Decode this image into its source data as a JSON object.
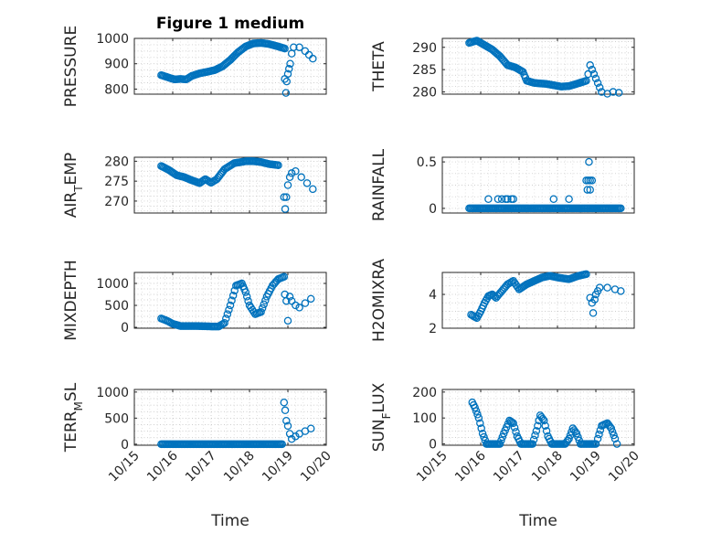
{
  "figure_title": "Figure 1 medium",
  "chart_data": [
    {
      "id": "pressure",
      "type": "scatter",
      "title": "Figure 1 medium",
      "ylabel": "PRESSURE",
      "ylabel_parts": [
        {
          "t": "PRESSURE",
          "s": "n"
        }
      ],
      "xlabel": "",
      "xlim": [
        0,
        5
      ],
      "ylim": [
        780,
        1000
      ],
      "yticks": [
        800,
        900,
        1000
      ],
      "ytick_labels": [
        "800",
        "900",
        "1000"
      ],
      "xticks": [
        0,
        1,
        2,
        3,
        4,
        5
      ],
      "show_xtick_labels": false,
      "grid": true,
      "keypoints": [
        [
          0.7,
          855
        ],
        [
          0.9,
          845
        ],
        [
          1.05,
          838
        ],
        [
          1.2,
          840
        ],
        [
          1.35,
          838
        ],
        [
          1.5,
          852
        ],
        [
          1.7,
          862
        ],
        [
          1.9,
          868
        ],
        [
          2.1,
          875
        ],
        [
          2.3,
          890
        ],
        [
          2.5,
          915
        ],
        [
          2.7,
          945
        ],
        [
          2.9,
          968
        ],
        [
          3.1,
          980
        ],
        [
          3.3,
          982
        ],
        [
          3.5,
          978
        ],
        [
          3.75,
          968
        ],
        [
          3.92,
          960
        ]
      ],
      "extra_points": [
        [
          3.92,
          840
        ],
        [
          3.95,
          785
        ],
        [
          3.97,
          830
        ],
        [
          4.0,
          860
        ],
        [
          4.03,
          880
        ],
        [
          4.06,
          900
        ],
        [
          4.1,
          940
        ],
        [
          4.15,
          965
        ],
        [
          4.3,
          965
        ],
        [
          4.45,
          950
        ],
        [
          4.55,
          935
        ],
        [
          4.65,
          920
        ]
      ]
    },
    {
      "id": "theta",
      "type": "scatter",
      "ylabel": "THETA",
      "ylabel_parts": [
        {
          "t": "THETA",
          "s": "n"
        }
      ],
      "xlabel": "",
      "xlim": [
        0,
        5
      ],
      "ylim": [
        279.5,
        292
      ],
      "yticks": [
        280,
        285,
        290
      ],
      "ytick_labels": [
        "280",
        "285",
        "290"
      ],
      "xticks": [
        0,
        1,
        2,
        3,
        4,
        5
      ],
      "show_xtick_labels": false,
      "grid": true,
      "keypoints": [
        [
          0.7,
          291
        ],
        [
          0.9,
          291.5
        ],
        [
          1.1,
          290.5
        ],
        [
          1.3,
          289.5
        ],
        [
          1.5,
          288
        ],
        [
          1.7,
          286
        ],
        [
          1.9,
          285.5
        ],
        [
          2.1,
          284.5
        ],
        [
          2.2,
          282.5
        ],
        [
          2.4,
          282
        ],
        [
          2.7,
          281.8
        ],
        [
          2.9,
          281.5
        ],
        [
          3.1,
          281.2
        ],
        [
          3.3,
          281.3
        ],
        [
          3.5,
          281.8
        ],
        [
          3.75,
          282.5
        ]
      ],
      "extra_points": [
        [
          3.8,
          284
        ],
        [
          3.85,
          286
        ],
        [
          3.9,
          285
        ],
        [
          3.95,
          284
        ],
        [
          4.0,
          283
        ],
        [
          4.05,
          282
        ],
        [
          4.1,
          281
        ],
        [
          4.15,
          280
        ],
        [
          4.3,
          279.6
        ],
        [
          4.45,
          280
        ],
        [
          4.6,
          279.8
        ]
      ]
    },
    {
      "id": "air_temp",
      "type": "scatter",
      "ylabel": "AIR_TEMP",
      "ylabel_parts": [
        {
          "t": "AIR",
          "s": "n"
        },
        {
          "t": "T",
          "s": "sub"
        },
        {
          "t": "EMP",
          "s": "n"
        }
      ],
      "xlabel": "",
      "xlim": [
        0,
        5
      ],
      "ylim": [
        267,
        281
      ],
      "yticks": [
        270,
        275,
        280
      ],
      "ytick_labels": [
        "270",
        "275",
        "280"
      ],
      "xticks": [
        0,
        1,
        2,
        3,
        4,
        5
      ],
      "show_xtick_labels": false,
      "grid": true,
      "keypoints": [
        [
          0.7,
          278.8
        ],
        [
          0.9,
          277.8
        ],
        [
          1.1,
          276.5
        ],
        [
          1.3,
          276
        ],
        [
          1.5,
          275.2
        ],
        [
          1.7,
          274.5
        ],
        [
          1.85,
          275.5
        ],
        [
          2.0,
          274.6
        ],
        [
          2.15,
          275.5
        ],
        [
          2.35,
          278
        ],
        [
          2.6,
          279.5
        ],
        [
          2.9,
          280
        ],
        [
          3.1,
          280
        ],
        [
          3.3,
          279.8
        ],
        [
          3.5,
          279.3
        ],
        [
          3.75,
          279
        ]
      ],
      "extra_points": [
        [
          3.9,
          271
        ],
        [
          3.93,
          268
        ],
        [
          3.96,
          271
        ],
        [
          4.0,
          274
        ],
        [
          4.05,
          276
        ],
        [
          4.1,
          277
        ],
        [
          4.2,
          277.5
        ],
        [
          4.35,
          276
        ],
        [
          4.5,
          274.5
        ],
        [
          4.65,
          273
        ]
      ]
    },
    {
      "id": "rainfall",
      "type": "scatter",
      "ylabel": "RAINFALL",
      "ylabel_parts": [
        {
          "t": "RAINFALL",
          "s": "n"
        }
      ],
      "xlabel": "",
      "xlim": [
        0,
        5
      ],
      "ylim": [
        -0.05,
        0.55
      ],
      "yticks": [
        0,
        0.5
      ],
      "ytick_labels": [
        "0",
        "0.5"
      ],
      "xticks": [
        0,
        1,
        2,
        3,
        4,
        5
      ],
      "show_xtick_labels": false,
      "grid": true,
      "keypoints": [
        [
          0.7,
          0
        ],
        [
          1.35,
          0
        ],
        [
          1.55,
          0
        ],
        [
          2.25,
          0
        ],
        [
          2.3,
          0
        ],
        [
          3.2,
          0
        ],
        [
          3.3,
          0
        ],
        [
          3.7,
          0
        ],
        [
          3.85,
          0
        ],
        [
          4.65,
          0
        ]
      ],
      "extra_points": [
        [
          1.2,
          0.1
        ],
        [
          1.45,
          0.1
        ],
        [
          1.55,
          0.1
        ],
        [
          1.65,
          0.1
        ],
        [
          1.7,
          0.1
        ],
        [
          1.8,
          0.1
        ],
        [
          1.85,
          0.1
        ],
        [
          2.9,
          0.1
        ],
        [
          3.3,
          0.1
        ],
        [
          3.75,
          0.3
        ],
        [
          3.8,
          0.3
        ],
        [
          3.85,
          0.3
        ],
        [
          3.9,
          0.3
        ],
        [
          3.82,
          0.5
        ],
        [
          3.78,
          0.2
        ],
        [
          3.85,
          0.2
        ]
      ]
    },
    {
      "id": "mixdepth",
      "type": "scatter",
      "ylabel": "MIXDEPTH",
      "ylabel_parts": [
        {
          "t": "MIXDEPTH",
          "s": "n"
        }
      ],
      "xlabel": "",
      "xlim": [
        0,
        5
      ],
      "ylim": [
        -20,
        1250
      ],
      "yticks": [
        0,
        500,
        1000
      ],
      "ytick_labels": [
        "0",
        "500",
        "1000"
      ],
      "xticks": [
        0,
        1,
        2,
        3,
        4,
        5
      ],
      "show_xtick_labels": false,
      "grid": true,
      "keypoints": [
        [
          0.7,
          200
        ],
        [
          0.85,
          150
        ],
        [
          1.0,
          80
        ],
        [
          1.2,
          30
        ],
        [
          1.6,
          30
        ],
        [
          2.0,
          20
        ],
        [
          2.2,
          20
        ],
        [
          2.35,
          100
        ],
        [
          2.5,
          500
        ],
        [
          2.65,
          950
        ],
        [
          2.8,
          1000
        ],
        [
          2.9,
          800
        ],
        [
          3.0,
          500
        ],
        [
          3.15,
          300
        ],
        [
          3.3,
          350
        ],
        [
          3.45,
          700
        ],
        [
          3.6,
          950
        ],
        [
          3.75,
          1100
        ],
        [
          3.9,
          1150
        ]
      ],
      "extra_points": [
        [
          3.92,
          750
        ],
        [
          3.96,
          600
        ],
        [
          4.0,
          150
        ],
        [
          4.05,
          700
        ],
        [
          4.1,
          600
        ],
        [
          4.2,
          500
        ],
        [
          4.3,
          450
        ],
        [
          4.45,
          550
        ],
        [
          4.6,
          650
        ]
      ]
    },
    {
      "id": "h2omixra",
      "type": "scatter",
      "ylabel": "H2OMIXRA",
      "ylabel_parts": [
        {
          "t": "H2OMIXRA",
          "s": "n"
        }
      ],
      "xlabel": "",
      "xlim": [
        0,
        5
      ],
      "ylim": [
        2,
        5.3
      ],
      "yticks": [
        2,
        4
      ],
      "ytick_labels": [
        "2",
        "4"
      ],
      "xticks": [
        0,
        1,
        2,
        3,
        4,
        5
      ],
      "show_xtick_labels": false,
      "grid": true,
      "keypoints": [
        [
          0.75,
          2.8
        ],
        [
          0.9,
          2.6
        ],
        [
          1.0,
          3.0
        ],
        [
          1.1,
          3.5
        ],
        [
          1.2,
          3.9
        ],
        [
          1.3,
          4.0
        ],
        [
          1.4,
          3.8
        ],
        [
          1.55,
          4.2
        ],
        [
          1.7,
          4.6
        ],
        [
          1.85,
          4.8
        ],
        [
          2.0,
          4.3
        ],
        [
          2.2,
          4.6
        ],
        [
          2.4,
          4.8
        ],
        [
          2.6,
          5.0
        ],
        [
          2.8,
          5.1
        ],
        [
          3.0,
          5.0
        ],
        [
          3.3,
          4.9
        ],
        [
          3.55,
          5.1
        ],
        [
          3.75,
          5.2
        ]
      ],
      "extra_points": [
        [
          3.85,
          3.8
        ],
        [
          3.9,
          3.5
        ],
        [
          3.93,
          2.9
        ],
        [
          3.97,
          3.7
        ],
        [
          4.0,
          4.0
        ],
        [
          4.05,
          4.2
        ],
        [
          4.1,
          4.4
        ],
        [
          4.3,
          4.4
        ],
        [
          4.5,
          4.3
        ],
        [
          4.65,
          4.2
        ]
      ]
    },
    {
      "id": "terr_msl",
      "type": "scatter",
      "ylabel": "TERR_MSL",
      "ylabel_parts": [
        {
          "t": "TERR",
          "s": "n"
        },
        {
          "t": "M",
          "s": "sub"
        },
        {
          "t": "SL",
          "s": "n"
        }
      ],
      "xlabel": "Time",
      "xlim": [
        0,
        5
      ],
      "ylim": [
        -20,
        1050
      ],
      "yticks": [
        0,
        500,
        1000
      ],
      "ytick_labels": [
        "0",
        "500",
        "1000"
      ],
      "xticks": [
        0,
        1,
        2,
        3,
        4,
        5
      ],
      "xtick_labels": [
        "10/15",
        "10/16",
        "10/17",
        "10/18",
        "10/19",
        "10/20"
      ],
      "show_xtick_labels": true,
      "grid": true,
      "keypoints": [
        [
          0.7,
          0
        ],
        [
          1.5,
          0
        ],
        [
          2.5,
          0
        ],
        [
          3.3,
          0
        ],
        [
          3.85,
          0
        ]
      ],
      "extra_points": [
        [
          3.9,
          800
        ],
        [
          3.93,
          650
        ],
        [
          3.96,
          450
        ],
        [
          4.0,
          350
        ],
        [
          4.05,
          200
        ],
        [
          4.1,
          100
        ],
        [
          4.2,
          150
        ],
        [
          4.3,
          200
        ],
        [
          4.45,
          250
        ],
        [
          4.6,
          300
        ]
      ]
    },
    {
      "id": "sun_flux",
      "type": "scatter",
      "ylabel": "SUN_FLUX",
      "ylabel_parts": [
        {
          "t": "SUN",
          "s": "n"
        },
        {
          "t": "F",
          "s": "sub"
        },
        {
          "t": "LUX",
          "s": "n"
        }
      ],
      "xlabel": "Time",
      "xlim": [
        0,
        5
      ],
      "ylim": [
        -5,
        210
      ],
      "yticks": [
        0,
        100,
        200
      ],
      "ytick_labels": [
        "0",
        "100",
        "200"
      ],
      "xticks": [
        0,
        1,
        2,
        3,
        4,
        5
      ],
      "xtick_labels": [
        "10/15",
        "10/16",
        "10/17",
        "10/18",
        "10/19",
        "10/20"
      ],
      "show_xtick_labels": true,
      "grid": true,
      "keypoints": [
        [
          0.78,
          160
        ],
        [
          0.85,
          140
        ],
        [
          0.95,
          100
        ],
        [
          1.05,
          40
        ],
        [
          1.15,
          0
        ],
        [
          1.5,
          0
        ],
        [
          1.6,
          40
        ],
        [
          1.75,
          90
        ],
        [
          1.85,
          80
        ],
        [
          1.95,
          30
        ],
        [
          2.05,
          0
        ],
        [
          2.35,
          0
        ],
        [
          2.45,
          50
        ],
        [
          2.55,
          110
        ],
        [
          2.65,
          90
        ],
        [
          2.75,
          30
        ],
        [
          2.85,
          0
        ],
        [
          3.2,
          0
        ],
        [
          3.3,
          20
        ],
        [
          3.4,
          60
        ],
        [
          3.5,
          40
        ],
        [
          3.6,
          0
        ],
        [
          4.0,
          0
        ],
        [
          4.05,
          20
        ],
        [
          4.15,
          70
        ],
        [
          4.3,
          80
        ],
        [
          4.4,
          60
        ],
        [
          4.5,
          20
        ],
        [
          4.55,
          0
        ]
      ],
      "extra_points": []
    }
  ]
}
